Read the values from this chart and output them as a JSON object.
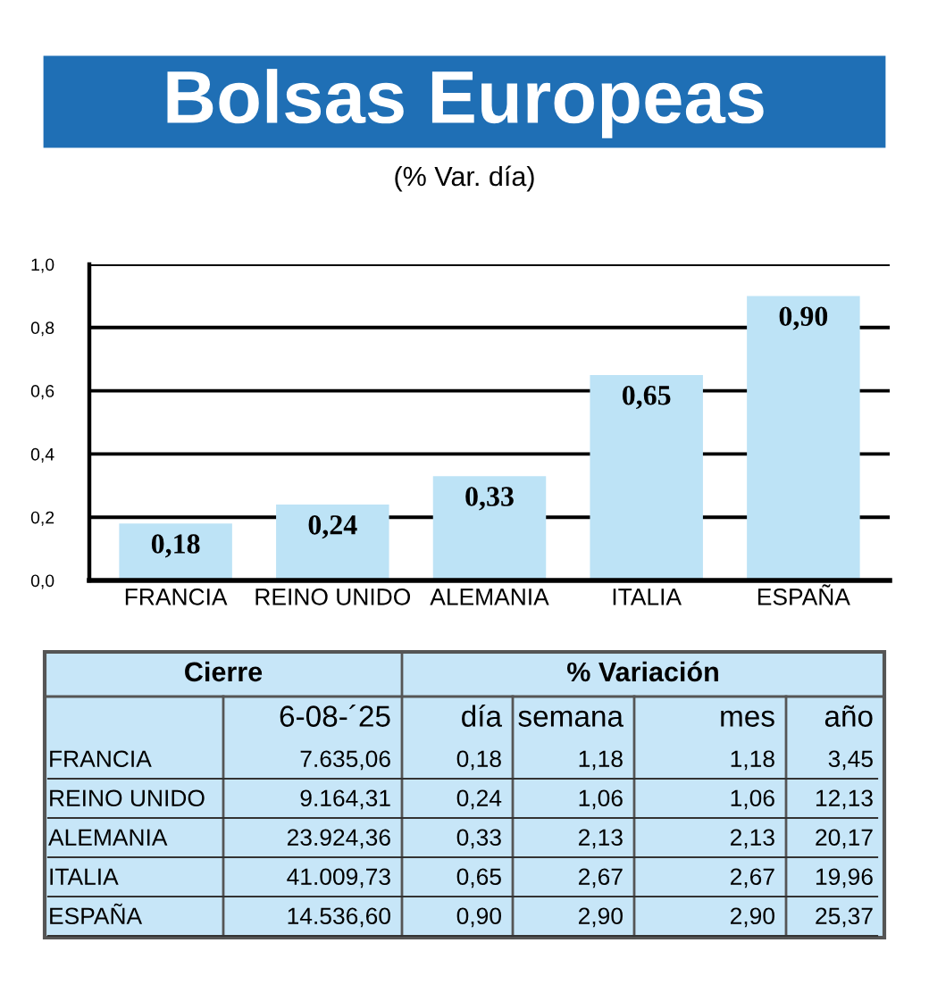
{
  "chart_data": [
    {
      "type": "bar",
      "title": "Bolsas Europeas",
      "subtitle": "(% Var. día)",
      "categories": [
        "FRANCIA",
        "REINO UNIDO",
        "ALEMANIA",
        "ITALIA",
        "ESPAÑA"
      ],
      "values": [
        0.18,
        0.24,
        0.33,
        0.65,
        0.9
      ],
      "value_labels": [
        "0,18",
        "0,24",
        "0,33",
        "0,65",
        "0,90"
      ],
      "color": "#bde3f6",
      "ylim": [
        0,
        1.0
      ],
      "yticks": [
        {
          "value": 0,
          "label": "0,0"
        },
        {
          "value": 0.2,
          "label": "0,2"
        },
        {
          "value": 0.4,
          "label": "0,4"
        },
        {
          "value": 0.6,
          "label": "0,6"
        },
        {
          "value": 0.8,
          "label": "0,8"
        },
        {
          "value": 1.0,
          "label": "1,0"
        }
      ],
      "grid": "y"
    },
    {
      "type": "other",
      "annotations": [
        "Cierre",
        "% Variación"
      ],
      "categories": [
        "6-08-´25",
        "día",
        "semana",
        "mes",
        "año"
      ],
      "y_categories": [
        "FRANCIA",
        "REINO UNIDO",
        "ALEMANIA",
        "ITALIA",
        "ESPAÑA"
      ],
      "cell_labels": [
        [
          "7.635,06",
          "0,18",
          "1,18",
          "1,18",
          "3,45"
        ],
        [
          "9.164,31",
          "0,24",
          "1,06",
          "1,06",
          "12,13"
        ],
        [
          "23.924,36",
          "0,33",
          "2,13",
          "2,13",
          "20,17"
        ],
        [
          "41.009,73",
          "0,65",
          "2,67",
          "2,67",
          "19,96"
        ],
        [
          "14.536,60",
          "0,90",
          "2,90",
          "2,90",
          "25,37"
        ]
      ]
    }
  ]
}
